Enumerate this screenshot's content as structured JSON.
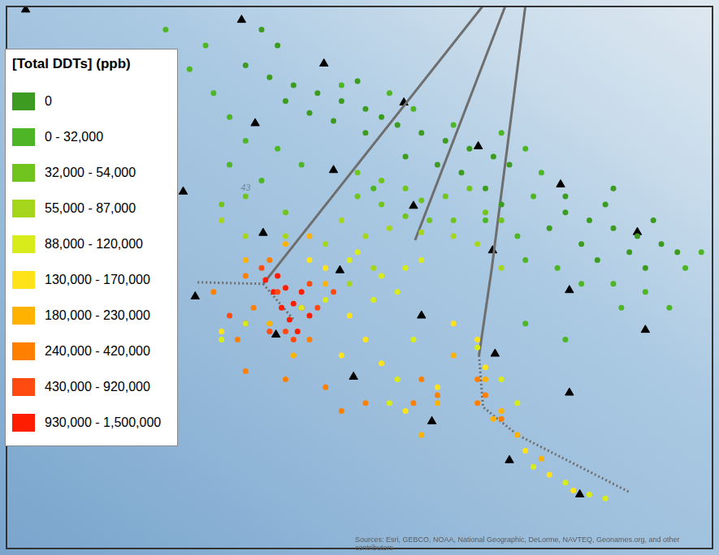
{
  "chart_data": {
    "type": "scatter",
    "xlim": [
      0,
      885
    ],
    "ylim": [
      0,
      684
    ],
    "tick_labels": false,
    "grid": false,
    "legend": "upper left",
    "legend_title": "[Total DDTs] (ppb)",
    "series": [
      {
        "name": "0",
        "color": "#3d9b22",
        "values": [
          [
            330,
            594
          ],
          [
            360,
            584
          ],
          [
            390,
            574
          ],
          [
            420,
            564
          ],
          [
            450,
            554
          ],
          [
            350,
            564
          ],
          [
            380,
            549
          ],
          [
            410,
            539
          ],
          [
            440,
            589
          ],
          [
            470,
            544
          ],
          [
            300,
            609
          ],
          [
            320,
            654
          ],
          [
            340,
            634
          ],
          [
            450,
            524
          ],
          [
            490,
            534
          ],
          [
            520,
            524
          ],
          [
            550,
            514
          ],
          [
            580,
            504
          ],
          [
            610,
            494
          ],
          [
            630,
            484
          ],
          [
            500,
            494
          ],
          [
            540,
            484
          ],
          [
            570,
            474
          ],
          [
            600,
            454
          ],
          [
            620,
            434
          ],
          [
            700,
            424
          ],
          [
            730,
            414
          ],
          [
            760,
            404
          ],
          [
            790,
            394
          ],
          [
            820,
            384
          ],
          [
            750,
            434
          ],
          [
            780,
            374
          ],
          [
            720,
            384
          ],
          [
            810,
            414
          ],
          [
            840,
            374
          ],
          [
            680,
            404
          ],
          [
            700,
            444
          ],
          [
            760,
            454
          ],
          [
            740,
            364
          ],
          [
            800,
            354
          ]
        ]
      },
      {
        "name": "0 - 32,000",
        "color": "#4db526",
        "values": [
          [
            260,
            574
          ],
          [
            280,
            544
          ],
          [
            300,
            514
          ],
          [
            340,
            504
          ],
          [
            370,
            484
          ],
          [
            230,
            604
          ],
          [
            250,
            634
          ],
          [
            200,
            654
          ],
          [
            420,
            584
          ],
          [
            480,
            574
          ],
          [
            510,
            554
          ],
          [
            560,
            534
          ],
          [
            620,
            524
          ],
          [
            650,
            504
          ],
          [
            670,
            474
          ],
          [
            690,
            354
          ],
          [
            720,
            334
          ],
          [
            760,
            334
          ],
          [
            800,
            324
          ],
          [
            850,
            354
          ],
          [
            660,
            444
          ],
          [
            280,
            484
          ],
          [
            320,
            464
          ],
          [
            460,
            454
          ],
          [
            600,
            414
          ],
          [
            640,
            394
          ],
          [
            650,
            364
          ],
          [
            770,
            304
          ],
          [
            830,
            304
          ],
          [
            870,
            374
          ],
          [
            650,
            284
          ],
          [
            700,
            264
          ]
        ]
      },
      {
        "name": "32,000 - 54,000",
        "color": "#71c41e",
        "values": [
          [
            440,
            474
          ],
          [
            470,
            464
          ],
          [
            500,
            454
          ],
          [
            440,
            444
          ],
          [
            470,
            434
          ],
          [
            520,
            439
          ],
          [
            550,
            444
          ],
          [
            580,
            454
          ],
          [
            560,
            414
          ],
          [
            530,
            414
          ],
          [
            500,
            419
          ],
          [
            600,
            424
          ],
          [
            270,
            434
          ],
          [
            300,
            444
          ],
          [
            350,
            424
          ],
          [
            620,
            414
          ]
        ]
      },
      {
        "name": "55,000 - 87,000",
        "color": "#a6d61c",
        "values": [
          [
            420,
            414
          ],
          [
            450,
            394
          ],
          [
            480,
            404
          ],
          [
            520,
            399
          ],
          [
            560,
            394
          ],
          [
            400,
            384
          ],
          [
            300,
            394
          ],
          [
            270,
            414
          ],
          [
            350,
            394
          ],
          [
            590,
            384
          ],
          [
            460,
            354
          ],
          [
            430,
            334
          ],
          [
            620,
            354
          ]
        ]
      },
      {
        "name": "88,000 - 120,000",
        "color": "#d9ec1b",
        "values": [
          [
            440,
            374
          ],
          [
            470,
            344
          ],
          [
            490,
            324
          ],
          [
            460,
            314
          ],
          [
            500,
            354
          ],
          [
            520,
            364
          ],
          [
            430,
            364
          ],
          [
            400,
            314
          ],
          [
            510,
            264
          ],
          [
            490,
            214
          ],
          [
            480,
            184
          ],
          [
            620,
            214
          ],
          [
            590,
            254
          ],
          [
            700,
            84
          ],
          [
            730,
            69
          ],
          [
            750,
            64
          ],
          [
            660,
            104
          ],
          [
            370,
            304
          ],
          [
            300,
            284
          ],
          [
            270,
            264
          ],
          [
            640,
            184
          ]
        ]
      },
      {
        "name": "130,000 - 170,000",
        "color": "#ffe31a",
        "values": [
          [
            400,
            354
          ],
          [
            380,
            364
          ],
          [
            430,
            294
          ],
          [
            450,
            264
          ],
          [
            420,
            244
          ],
          [
            470,
            234
          ],
          [
            540,
            204
          ],
          [
            560,
            284
          ],
          [
            590,
            264
          ],
          [
            680,
            94
          ],
          [
            710,
            74
          ],
          [
            650,
            124
          ],
          [
            270,
            274
          ],
          [
            500,
            174
          ],
          [
            600,
            229
          ]
        ]
      },
      {
        "name": "180,000 - 230,000",
        "color": "#ffb200",
        "values": [
          [
            350,
            384
          ],
          [
            380,
            394
          ],
          [
            400,
            334
          ],
          [
            360,
            244
          ],
          [
            560,
            244
          ],
          [
            600,
            214
          ],
          [
            610,
            164
          ],
          [
            640,
            144
          ],
          [
            620,
            174
          ],
          [
            670,
            114
          ],
          [
            520,
            144
          ],
          [
            540,
            184
          ],
          [
            330,
            284
          ],
          [
            300,
            364
          ]
        ]
      },
      {
        "name": "240,000 - 420,000",
        "color": "#ff7f00",
        "values": [
          [
            330,
            364
          ],
          [
            310,
            304
          ],
          [
            290,
            264
          ],
          [
            300,
            224
          ],
          [
            350,
            214
          ],
          [
            380,
            264
          ],
          [
            400,
            204
          ],
          [
            420,
            174
          ],
          [
            450,
            184
          ],
          [
            520,
            214
          ],
          [
            540,
            194
          ],
          [
            510,
            184
          ],
          [
            590,
            214
          ],
          [
            600,
            194
          ],
          [
            620,
            164
          ],
          [
            590,
            184
          ],
          [
            300,
            344
          ],
          [
            260,
            324
          ]
        ]
      },
      {
        "name": "430,000 - 920,000",
        "color": "#ff4b12",
        "values": [
          [
            320,
            354
          ],
          [
            340,
            324
          ],
          [
            370,
            304
          ],
          [
            380,
            334
          ],
          [
            350,
            274
          ],
          [
            360,
            264
          ],
          [
            390,
            304
          ],
          [
            280,
            294
          ],
          [
            300,
            284
          ],
          [
            410,
            324
          ],
          [
            330,
            274
          ]
        ]
      },
      {
        "name": "930,000 - 1,500,000",
        "color": "#ff1d00",
        "values": [
          [
            325,
            339
          ],
          [
            340,
            344
          ],
          [
            350,
            329
          ],
          [
            335,
            324
          ],
          [
            360,
            309
          ],
          [
            370,
            324
          ],
          [
            355,
            289
          ],
          [
            365,
            274
          ],
          [
            345,
            304
          ],
          [
            380,
            294
          ]
        ]
      }
    ],
    "lines": [
      {
        "line_style": "solid",
        "color": "#6e6e6e",
        "values": [
          [
            597,
            684
          ],
          [
            322,
            334
          ]
        ]
      },
      {
        "line_style": "solid",
        "color": "#6e6e6e",
        "values": [
          [
            625,
            684
          ],
          [
            512,
            389
          ]
        ]
      },
      {
        "line_style": "solid",
        "color": "#6e6e6e",
        "values": [
          [
            650,
            684
          ],
          [
            608,
            354
          ],
          [
            592,
            244
          ]
        ]
      },
      {
        "line_style": "dotted",
        "color": "#6e6e6e",
        "values": [
          [
            240,
            336
          ],
          [
            322,
            334
          ]
        ]
      },
      {
        "line_style": "dotted",
        "color": "#6e6e6e",
        "values": [
          [
            322,
            334
          ],
          [
            360,
            289
          ]
        ]
      },
      {
        "line_style": "dotted",
        "color": "#6e6e6e",
        "values": [
          [
            592,
            244
          ],
          [
            597,
            179
          ],
          [
            640,
            144
          ],
          [
            780,
            72
          ]
        ]
      }
    ],
    "stations": {
      "marker": "triangle",
      "color": "#000000",
      "values": [
        [
          25,
          679
        ],
        [
          295,
          666
        ],
        [
          398,
          611
        ],
        [
          498,
          562
        ],
        [
          312,
          536
        ],
        [
          410,
          477
        ],
        [
          591,
          507
        ],
        [
          222,
          450
        ],
        [
          510,
          432
        ],
        [
          694,
          459
        ],
        [
          322,
          398
        ],
        [
          790,
          399
        ],
        [
          418,
          351
        ],
        [
          609,
          376
        ],
        [
          705,
          326
        ],
        [
          237,
          318
        ],
        [
          520,
          294
        ],
        [
          338,
          270
        ],
        [
          800,
          276
        ],
        [
          612,
          246
        ],
        [
          435,
          217
        ],
        [
          705,
          197
        ],
        [
          533,
          161
        ],
        [
          630,
          112
        ],
        [
          718,
          69
        ]
      ]
    },
    "annotations": [
      {
        "text": "43",
        "x": 300,
        "y": 454
      }
    ],
    "source": "Sources: Esri, GEBCO, NOAA, National Geographic, DeLorme, NAVTEQ, Geonames.org, and other contributors"
  }
}
